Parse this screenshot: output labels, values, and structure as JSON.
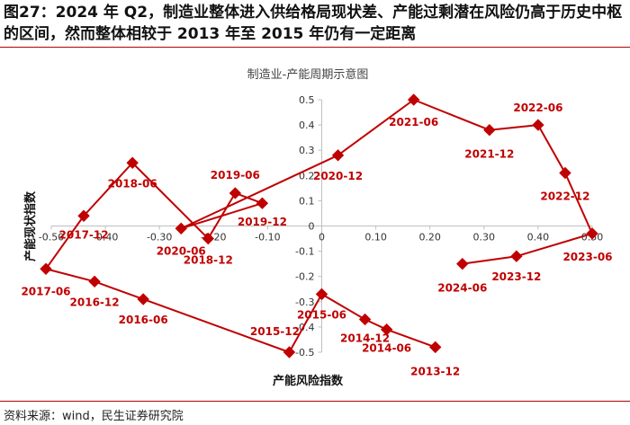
{
  "heading": "图27：2024 年 Q2，制造业整体进入供给格局现状差、产能过剩潜在风险仍高于历史中枢的区间，然而整体相较于 2013 年至 2015 年仍有一定距离",
  "source": "资料来源：wind，民生证券研究院",
  "colors": {
    "accent": "#c00000",
    "rule": "#b30000",
    "axis": "#bfbfbf"
  },
  "chart_data": {
    "type": "scatter",
    "connected": true,
    "title": "制造业-产能周期示意图",
    "xlabel": "产能风险指数",
    "ylabel": "产能现状指数",
    "xlim": [
      -0.5,
      0.5
    ],
    "ylim": [
      -0.5,
      0.5
    ],
    "xticks": [
      -0.5,
      -0.4,
      -0.3,
      -0.2,
      -0.1,
      0,
      0.1,
      0.2,
      0.3,
      0.4,
      0.5
    ],
    "xtick_labels": [
      "-0.50",
      "-0.40",
      "-0.30",
      "-0.20",
      "-0.10",
      "0",
      "0.10",
      "0.20",
      "0.30",
      "0.40",
      "0.50"
    ],
    "yticks": [
      0.5,
      0.4,
      0.3,
      0.2,
      0.1,
      0,
      -0.1,
      -0.2,
      -0.3,
      -0.4,
      -0.5
    ],
    "ytick_labels": [
      "0.5",
      "0.4",
      "0.3",
      "0.2",
      "0.1",
      "0",
      "-0.1",
      "-0.2",
      "-0.3",
      "-0.4",
      "-0.5"
    ],
    "points": [
      {
        "label": "2013-12",
        "x": 0.21,
        "y": -0.48
      },
      {
        "label": "2014-06",
        "x": 0.12,
        "y": -0.41
      },
      {
        "label": "2014-12",
        "x": 0.08,
        "y": -0.37
      },
      {
        "label": "2015-06",
        "x": 0.0,
        "y": -0.27
      },
      {
        "label": "2015-12",
        "x": -0.06,
        "y": -0.5
      },
      {
        "label": "2016-06",
        "x": -0.33,
        "y": -0.29
      },
      {
        "label": "2016-12",
        "x": -0.42,
        "y": -0.22
      },
      {
        "label": "2017-06",
        "x": -0.51,
        "y": -0.17
      },
      {
        "label": "2017-12",
        "x": -0.44,
        "y": 0.04
      },
      {
        "label": "2018-06",
        "x": -0.35,
        "y": 0.25
      },
      {
        "label": "2018-12",
        "x": -0.21,
        "y": -0.05
      },
      {
        "label": "2019-06",
        "x": -0.16,
        "y": 0.13
      },
      {
        "label": "2019-12",
        "x": -0.11,
        "y": 0.09
      },
      {
        "label": "2020-06",
        "x": -0.26,
        "y": -0.01
      },
      {
        "label": "2020-12",
        "x": 0.03,
        "y": 0.28
      },
      {
        "label": "2021-06",
        "x": 0.17,
        "y": 0.5
      },
      {
        "label": "2021-12",
        "x": 0.31,
        "y": 0.38
      },
      {
        "label": "2022-06",
        "x": 0.4,
        "y": 0.4
      },
      {
        "label": "2022-12",
        "x": 0.45,
        "y": 0.21
      },
      {
        "label": "2023-06",
        "x": 0.5,
        "y": -0.03
      },
      {
        "label": "2023-12",
        "x": 0.36,
        "y": -0.12
      },
      {
        "label": "2024-06",
        "x": 0.26,
        "y": -0.15
      }
    ],
    "segments": [
      [
        "2013-12",
        "2014-06"
      ],
      [
        "2014-06",
        "2014-12"
      ],
      [
        "2014-12",
        "2015-06"
      ],
      [
        "2015-06",
        "2015-12"
      ],
      [
        "2015-12",
        "2016-06"
      ],
      [
        "2016-06",
        "2016-12"
      ],
      [
        "2016-12",
        "2017-06"
      ],
      [
        "2017-06",
        "2017-12"
      ],
      [
        "2017-12",
        "2018-06"
      ],
      [
        "2018-06",
        "2018-12"
      ],
      [
        "2018-12",
        "2019-06"
      ],
      [
        "2019-06",
        "2019-12"
      ],
      [
        "2019-12",
        "2020-06"
      ],
      [
        "2020-06",
        "2020-12"
      ],
      [
        "2020-12",
        "2021-06"
      ],
      [
        "2021-06",
        "2021-12"
      ],
      [
        "2021-12",
        "2022-06"
      ],
      [
        "2022-06",
        "2022-12"
      ],
      [
        "2022-12",
        "2023-06"
      ],
      [
        "2023-06",
        "2023-12"
      ],
      [
        "2023-12",
        "2024-06"
      ]
    ]
  }
}
